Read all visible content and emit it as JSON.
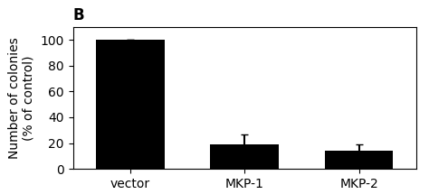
{
  "chart_data": {
    "type": "bar",
    "title": "B",
    "categories": [
      "vector",
      "MKP-1",
      "MKP-2"
    ],
    "values": [
      100,
      19,
      14
    ],
    "errors": [
      0,
      8,
      5
    ],
    "color": "#000000",
    "y_label": "Number of colonies\n(% of control)",
    "ylim": [
      0,
      110
    ],
    "yticks": [
      0,
      20,
      40,
      60,
      80,
      100
    ]
  }
}
